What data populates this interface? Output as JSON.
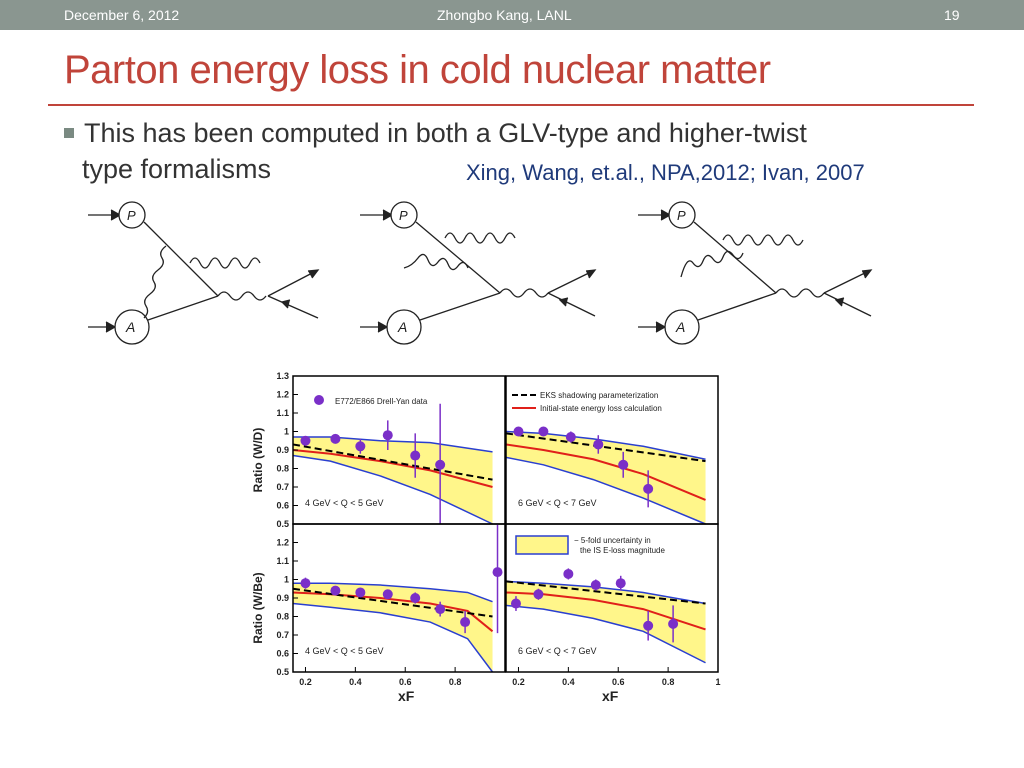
{
  "header": {
    "date": "December 6, 2012",
    "author": "Zhongbo Kang, LANL",
    "page": "19"
  },
  "title": "Parton energy loss in cold nuclear matter",
  "bullet": {
    "line1": "This has been computed in both a GLV-type and higher-twist",
    "line2": "type formalisms"
  },
  "citation": "Xing, Wang, et.al., NPA,2012; Ivan, 2007",
  "diagram_labels": {
    "proton": "P",
    "nucleus": "A"
  },
  "figure": {
    "legend_data": "E772/E866  Drell-Yan data",
    "legend_eks": "EKS shadowing parameterization",
    "legend_eloss": "Initial-state energy loss calculation",
    "legend_band_1": "− 5-fold uncertainty in",
    "legend_band_2": "the IS E-loss magnitude",
    "ylabel_top": "Ratio (W/D)",
    "ylabel_bottom": "Ratio (W/Be)",
    "xlabel": "xF",
    "panel_labels": [
      "4 GeV < Q < 5 GeV",
      "6 GeV < Q < 7 GeV",
      "4 GeV < Q < 5 GeV",
      "6 GeV < Q < 7 GeV"
    ],
    "colors": {
      "band": "#fff68a",
      "eks": "#000000",
      "eloss": "#e0201a",
      "band_edge": "#2a3fd0",
      "data": "#7a2fc8"
    }
  },
  "chart_data": {
    "type": "scatter",
    "xlabel": "xF",
    "ylabel": "Ratio",
    "xlim": [
      0.15,
      1.0
    ],
    "ylim": [
      0.5,
      1.3
    ],
    "x_ticks": [
      "0.2",
      "0.4",
      "0.6",
      "0.8",
      "1"
    ],
    "y_ticks": [
      "0.5",
      "0.6",
      "0.7",
      "0.8",
      "0.9",
      "1",
      "1.1",
      "1.2",
      "1.3"
    ],
    "panels": [
      {
        "label": "4 GeV < Q < 5 GeV",
        "ylabel": "Ratio (W/D)",
        "data_x": [
          0.2,
          0.32,
          0.42,
          0.53,
          0.64,
          0.74
        ],
        "data_y": [
          0.95,
          0.96,
          0.92,
          0.98,
          0.87,
          0.82
        ],
        "err": [
          0.02,
          0.02,
          0.04,
          0.08,
          0.12,
          0.33
        ],
        "eks_x": [
          0.15,
          0.95
        ],
        "eks_y": [
          0.93,
          0.74
        ],
        "eloss_x": [
          0.15,
          0.3,
          0.5,
          0.7,
          0.95
        ],
        "eloss_y": [
          0.9,
          0.88,
          0.84,
          0.79,
          0.7
        ],
        "band_upper": [
          0.97,
          0.97,
          0.95,
          0.94,
          0.89
        ],
        "band_lower": [
          0.87,
          0.84,
          0.76,
          0.66,
          0.5
        ]
      },
      {
        "label": "6 GeV < Q < 7 GeV",
        "ylabel": "",
        "data_x": [
          0.2,
          0.3,
          0.41,
          0.52,
          0.62,
          0.72
        ],
        "data_y": [
          1.0,
          1.0,
          0.97,
          0.93,
          0.82,
          0.69
        ],
        "err": [
          0.02,
          0.02,
          0.03,
          0.05,
          0.07,
          0.1
        ],
        "eks_x": [
          0.15,
          0.95
        ],
        "eks_y": [
          0.99,
          0.84
        ],
        "eloss_x": [
          0.15,
          0.3,
          0.5,
          0.7,
          0.95
        ],
        "eloss_y": [
          0.93,
          0.9,
          0.85,
          0.77,
          0.63
        ],
        "band_upper": [
          1.0,
          0.99,
          0.96,
          0.92,
          0.85
        ],
        "band_lower": [
          0.86,
          0.82,
          0.74,
          0.64,
          0.5
        ]
      },
      {
        "label": "4 GeV < Q < 5 GeV",
        "ylabel": "Ratio (W/Be)",
        "data_x": [
          0.2,
          0.32,
          0.42,
          0.53,
          0.64,
          0.74,
          0.84,
          0.97
        ],
        "data_y": [
          0.98,
          0.94,
          0.93,
          0.92,
          0.9,
          0.84,
          0.77,
          1.04
        ],
        "err": [
          0.03,
          0.02,
          0.02,
          0.02,
          0.03,
          0.04,
          0.06,
          0.33
        ],
        "eks_x": [
          0.15,
          0.95
        ],
        "eks_y": [
          0.95,
          0.8
        ],
        "eloss_x": [
          0.15,
          0.3,
          0.5,
          0.7,
          0.85,
          0.95
        ],
        "eloss_y": [
          0.93,
          0.92,
          0.9,
          0.87,
          0.83,
          0.72
        ],
        "band_upper": [
          0.98,
          0.98,
          0.97,
          0.95,
          0.93,
          0.88
        ],
        "band_lower": [
          0.87,
          0.85,
          0.82,
          0.77,
          0.68,
          0.5
        ]
      },
      {
        "label": "6 GeV < Q < 7 GeV",
        "ylabel": "",
        "data_x": [
          0.19,
          0.28,
          0.4,
          0.51,
          0.61,
          0.72,
          0.82
        ],
        "data_y": [
          0.87,
          0.92,
          1.03,
          0.97,
          0.98,
          0.75,
          0.76
        ],
        "err": [
          0.04,
          0.03,
          0.03,
          0.03,
          0.04,
          0.08,
          0.1
        ],
        "eks_x": [
          0.15,
          0.95
        ],
        "eks_y": [
          0.99,
          0.87
        ],
        "eloss_x": [
          0.15,
          0.3,
          0.5,
          0.7,
          0.95
        ],
        "eloss_y": [
          0.93,
          0.92,
          0.89,
          0.84,
          0.73
        ],
        "band_upper": [
          0.99,
          0.98,
          0.96,
          0.93,
          0.87
        ],
        "band_lower": [
          0.86,
          0.84,
          0.79,
          0.72,
          0.55
        ]
      }
    ]
  }
}
